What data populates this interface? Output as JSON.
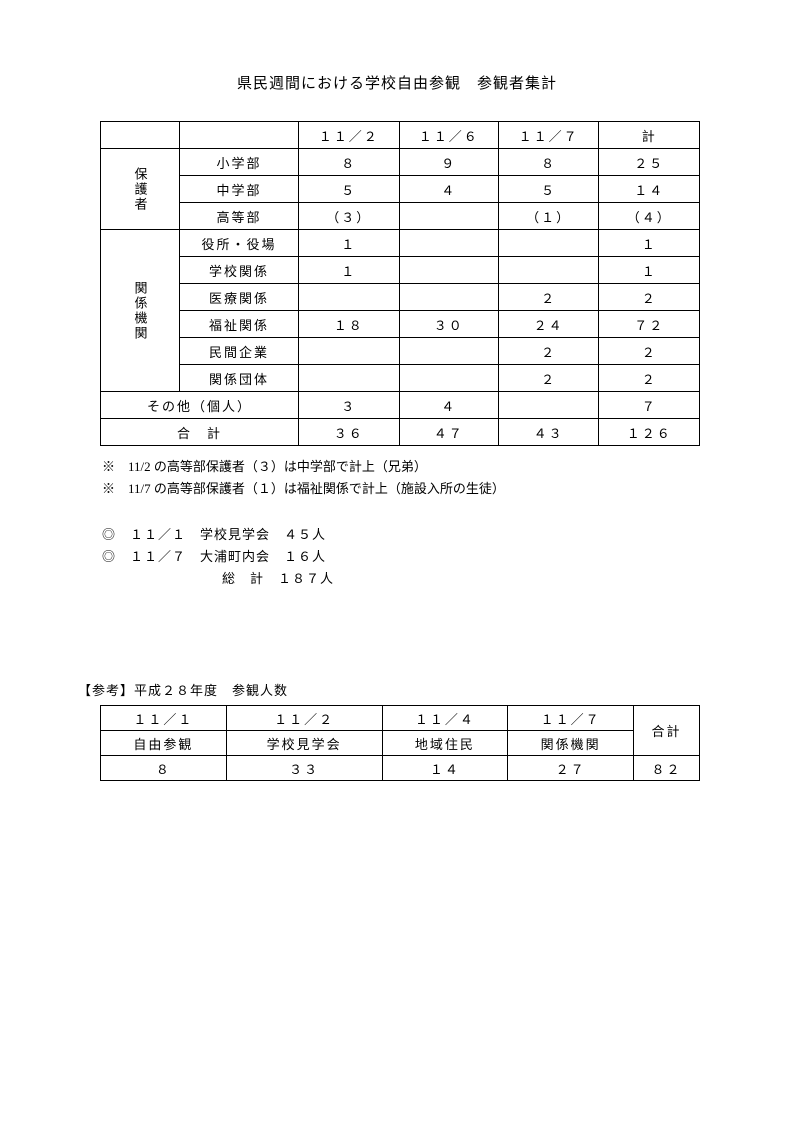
{
  "title": "県民週間における学校自由参観　参観者集計",
  "main_table": {
    "header": [
      "",
      "",
      "１１／２",
      "１１／６",
      "１１／７",
      "計"
    ],
    "groups": [
      {
        "label": "保護者",
        "rows": [
          {
            "sub": "小学部",
            "d1": "８",
            "d2": "９",
            "d3": "８",
            "total": "２５"
          },
          {
            "sub": "中学部",
            "d1": "５",
            "d2": "４",
            "d3": "５",
            "total": "１４"
          },
          {
            "sub": "高等部",
            "d1": "（３）",
            "d2": "",
            "d3": "（１）",
            "total": "（４）"
          }
        ]
      },
      {
        "label": "関係機関",
        "rows": [
          {
            "sub": "役所・役場",
            "d1": "１",
            "d2": "",
            "d3": "",
            "total": "１"
          },
          {
            "sub": "学校関係",
            "d1": "１",
            "d2": "",
            "d3": "",
            "total": "１"
          },
          {
            "sub": "医療関係",
            "d1": "",
            "d2": "",
            "d3": "２",
            "total": "２"
          },
          {
            "sub": "福祉関係",
            "d1": "１８",
            "d2": "３０",
            "d3": "２４",
            "total": "７２"
          },
          {
            "sub": "民間企業",
            "d1": "",
            "d2": "",
            "d3": "２",
            "total": "２"
          },
          {
            "sub": "関係団体",
            "d1": "",
            "d2": "",
            "d3": "２",
            "total": "２"
          }
        ]
      }
    ],
    "other_row": {
      "sub": "その他（個人）",
      "d1": "３",
      "d2": "４",
      "d3": "",
      "total": "７"
    },
    "total_row": {
      "sub": "合　計",
      "d1": "３６",
      "d2": "４７",
      "d3": "４３",
      "total": "１２６"
    }
  },
  "notes": [
    "※　11/2 の高等部保護者（３）は中学部で計上（兄弟）",
    "※　11/7 の高等部保護者（１）は福祉関係で計上（施設入所の生徒）"
  ],
  "events": {
    "line1": "◎　１１／１　学校見学会　４５人",
    "line2": "◎　１１／７　大浦町内会　１６人",
    "total": "総　計　１８７人"
  },
  "reference": {
    "heading": "【参考】平成２８年度　参観人数",
    "header_dates": [
      "１１／１",
      "１１／２",
      "１１／４",
      "１１／７"
    ],
    "header_labels": [
      "自由参観",
      "学校見学会",
      "地域住民",
      "関係機関"
    ],
    "total_label": "合計",
    "values": [
      "８",
      "３３",
      "１４",
      "２７",
      "８２"
    ]
  }
}
